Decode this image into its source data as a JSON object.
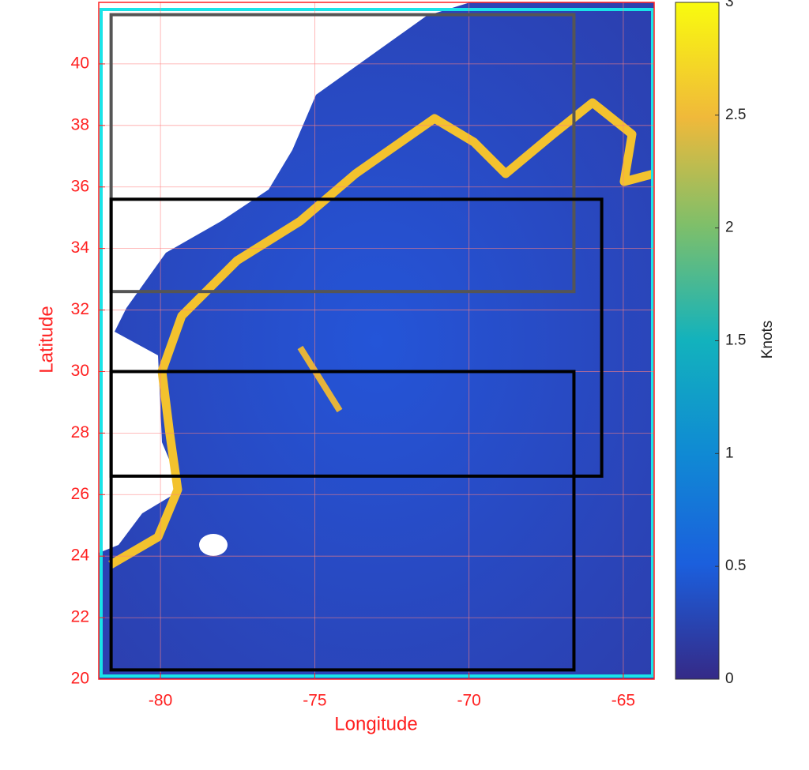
{
  "chart_data": {
    "type": "map",
    "xlabel": "Longitude",
    "ylabel": "Latitude",
    "xlim": [
      -82,
      -64
    ],
    "ylim": [
      20,
      42
    ],
    "xticks": [
      -80,
      -75,
      -70,
      -65
    ],
    "yticks": [
      20,
      22,
      24,
      26,
      28,
      30,
      32,
      34,
      36,
      38,
      40
    ],
    "grid": true,
    "colorbar": {
      "label": "Knots",
      "clim": [
        0,
        3
      ],
      "ticks": [
        0,
        0.5,
        1,
        1.5,
        2,
        2.5,
        3
      ]
    },
    "boxes": [
      {
        "color": "#555555",
        "lon": [
          -81.6,
          -66.6
        ],
        "lat": [
          32.6,
          41.6
        ]
      },
      {
        "color": "#000000",
        "lon": [
          -81.6,
          -65.7
        ],
        "lat": [
          26.6,
          35.6
        ]
      },
      {
        "color": "#000000",
        "lon": [
          -81.6,
          -66.6
        ],
        "lat": [
          20.3,
          30
        ]
      }
    ]
  }
}
